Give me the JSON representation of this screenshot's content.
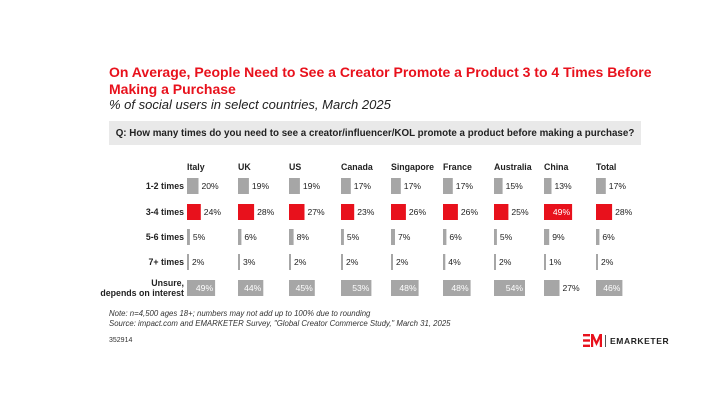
{
  "title": "On Average, People Need to See a Creator Promote a Product 3 to 4 Times Before Making a Purchase",
  "subtitle": "% of social users in select countries, March 2025",
  "question": "Q: How many times do you need to see a creator/influencer/KOL promote a product before making a purchase?",
  "note": "Note: n=4,500 ages 18+; numbers may not add up to 100% due to rounding",
  "source": "Source: impact.com and EMARKETER Survey, \"Global Creator Commerce Study,\" March 31, 2025",
  "chart_id": "352914",
  "brand": "EMARKETER",
  "colors": {
    "gray": "#a6a6a6",
    "red": "#e8111c",
    "title_red": "#e8111c",
    "question_bg": "#e9e9e9"
  },
  "chart_data": {
    "type": "table",
    "title": "On Average, People Need to See a Creator Promote a Product 3 to 4 Times Before Making a Purchase",
    "columns": [
      "Italy",
      "UK",
      "US",
      "Canada",
      "Singapore",
      "France",
      "Australia",
      "China",
      "Total"
    ],
    "rows": [
      {
        "label": "1-2 times",
        "values": [
          20,
          19,
          19,
          17,
          17,
          17,
          15,
          13,
          17
        ],
        "highlight": [
          false,
          false,
          false,
          false,
          false,
          false,
          false,
          false,
          false
        ]
      },
      {
        "label": "3-4 times",
        "values": [
          24,
          28,
          27,
          23,
          26,
          26,
          25,
          49,
          28
        ],
        "highlight": [
          true,
          true,
          true,
          true,
          true,
          true,
          true,
          true,
          true
        ]
      },
      {
        "label": "5-6 times",
        "values": [
          5,
          6,
          8,
          5,
          7,
          6,
          5,
          9,
          6
        ],
        "highlight": [
          false,
          false,
          false,
          false,
          false,
          false,
          false,
          false,
          false
        ]
      },
      {
        "label": "7+ times",
        "values": [
          2,
          3,
          2,
          2,
          2,
          4,
          2,
          1,
          2
        ],
        "highlight": [
          false,
          false,
          false,
          false,
          false,
          false,
          false,
          false,
          false
        ]
      },
      {
        "label": "Unsure, depends on interest",
        "values": [
          49,
          44,
          45,
          53,
          48,
          48,
          54,
          27,
          46
        ],
        "highlight": [
          false,
          false,
          false,
          false,
          false,
          false,
          false,
          false,
          false
        ]
      }
    ],
    "value_format": "{v}%",
    "max_value": 54
  }
}
